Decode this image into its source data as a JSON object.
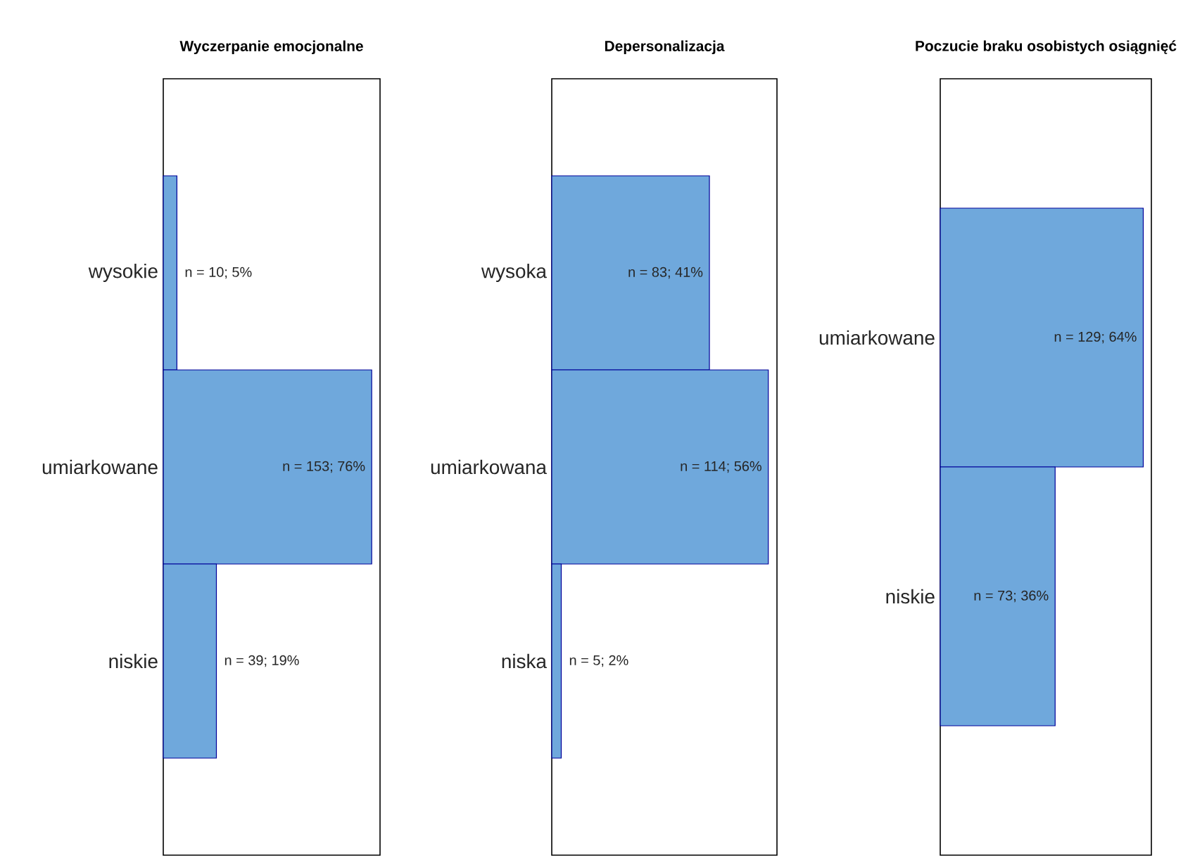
{
  "chart_data": [
    {
      "type": "bar",
      "orientation": "horizontal",
      "title": "Wyczerpanie emocjonalne",
      "categories": [
        "wysokie",
        "umiarkowane",
        "niskie"
      ],
      "values": [
        10,
        153,
        39
      ],
      "value_labels": [
        "n = 10; 5%",
        "n = 153; 76%",
        "n = 39; 19%"
      ],
      "color": "#6fa8dc"
    },
    {
      "type": "bar",
      "orientation": "horizontal",
      "title": "Depersonalizacja",
      "categories": [
        "wysoka",
        "umiarkowana",
        "niska"
      ],
      "values": [
        83,
        114,
        5
      ],
      "value_labels": [
        "n = 83; 41%",
        "n = 114; 56%",
        "n = 5; 2%"
      ],
      "color": "#6fa8dc"
    },
    {
      "type": "bar",
      "orientation": "horizontal",
      "title": "Poczucie braku osobistych osiągnięć",
      "categories": [
        "umiarkowane",
        "niskie"
      ],
      "values": [
        129,
        73
      ],
      "value_labels": [
        "n = 129; 64%",
        "n = 73; 36%"
      ],
      "color": "#6fa8dc"
    }
  ]
}
